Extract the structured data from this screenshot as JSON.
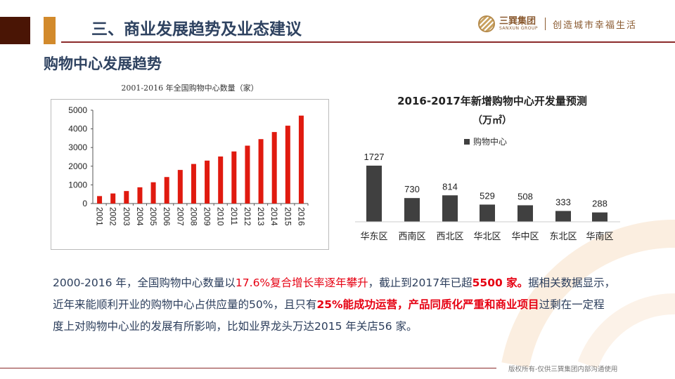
{
  "header": {
    "title": "三、商业发展趋势及业态建议",
    "logo_cn": "三巽集团",
    "logo_en": "SANXUN GROUP",
    "slogan": "创造城市幸福生活"
  },
  "section_title": "购物中心发展趋势",
  "colors": {
    "accent_dark": "#4a1505",
    "accent_orange": "#d28a2c",
    "title": "#2e4260",
    "bar_red": "#e01a0f",
    "bar_gray": "#404040",
    "highlight": "#e60012"
  },
  "chart_data": [
    {
      "type": "bar",
      "title": "2001-2016 年全国购物中心数量（家）",
      "categories": [
        "2001",
        "2002",
        "2003",
        "2004",
        "2005",
        "2006",
        "2007",
        "2008",
        "2009",
        "2010",
        "2011",
        "2012",
        "2013",
        "2014",
        "2015",
        "2016"
      ],
      "values": [
        400,
        540,
        670,
        870,
        1140,
        1420,
        1800,
        2120,
        2300,
        2520,
        2790,
        3100,
        3450,
        3830,
        4170,
        4710
      ],
      "ylim": [
        0,
        5000
      ],
      "yticks": [
        "0",
        "1000",
        "2000",
        "3000",
        "4000",
        "5000"
      ],
      "grid": false
    },
    {
      "type": "bar",
      "title": "2016-2017年新增购物中心开发量预测",
      "unit": "（万㎡）",
      "series": [
        {
          "name": "购物中心",
          "values": [
            1727,
            730,
            814,
            529,
            508,
            333,
            288
          ]
        }
      ],
      "categories": [
        "华东区",
        "西南区",
        "西北区",
        "华北区",
        "华中区",
        "东北区",
        "华南区"
      ],
      "data_labels": [
        "1727",
        "730",
        "814",
        "529",
        "508",
        "333",
        "288"
      ],
      "legend": "top"
    }
  ],
  "paragraph": {
    "l1a": "2000-2016 年，全国购物中心数量以",
    "l1b": "17.6%复合增长率逐年攀升",
    "l1c": "，截止到2017年已超",
    "l1d": "5500 家。",
    "l1e": "据相关数据显示，",
    "l2a": "近年来能顺利开业的购物中心占供应量的50%，且只有",
    "l2b": "25%能成功运营，产品同质化严重和商业项目",
    "l2c": "过剩在一定程",
    "l3": "度上对购物中心业的发展有所影响，比如业界龙头万达2015 年关店56 家。"
  },
  "footer": "版权所有-仅供三巽集团内部沟通使用"
}
